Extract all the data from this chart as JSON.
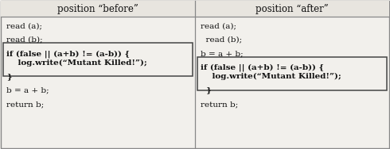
{
  "col1_header": "position “before”",
  "col2_header": "position “after”",
  "col1_lines": [
    {
      "text": "read (a);",
      "bold": false
    },
    {
      "text": "",
      "bold": false
    },
    {
      "text": "read (b);",
      "bold": false
    },
    {
      "text": "",
      "bold": false
    },
    {
      "text": "if (false || (a+b) != (a-b)) {",
      "bold": true,
      "box_start": true
    },
    {
      "text": "    log.write(“Mutant Killed!”);",
      "bold": true
    },
    {
      "text": "",
      "bold": false
    },
    {
      "text": "}",
      "bold": true,
      "box_end": true
    },
    {
      "text": "",
      "bold": false
    },
    {
      "text": "b = a + b;",
      "bold": false
    },
    {
      "text": "",
      "bold": false
    },
    {
      "text": "return b;",
      "bold": false
    }
  ],
  "col2_lines": [
    {
      "text": "read (a);",
      "bold": false
    },
    {
      "text": "",
      "bold": false
    },
    {
      "text": "  read (b);",
      "bold": false
    },
    {
      "text": "",
      "bold": false
    },
    {
      "text": "b = a + b;",
      "bold": false
    },
    {
      "text": "",
      "bold": false
    },
    {
      "text": "if (false || (a+b) != (a-b)) {",
      "bold": true,
      "box_start": true
    },
    {
      "text": "    log.write(“Mutant Killed!”);",
      "bold": true
    },
    {
      "text": "",
      "bold": false
    },
    {
      "text": "  }",
      "bold": true,
      "box_end": true
    },
    {
      "text": "",
      "bold": false
    },
    {
      "text": "return b;",
      "bold": false
    }
  ],
  "bg_color": "#f2f0ec",
  "header_bg": "#e8e5df",
  "border_color": "#888888",
  "text_color": "#111111",
  "font_size": 7.5,
  "header_font_size": 8.5,
  "col_div": 245,
  "fig_w": 4.9,
  "fig_h": 1.88,
  "dpi": 100
}
